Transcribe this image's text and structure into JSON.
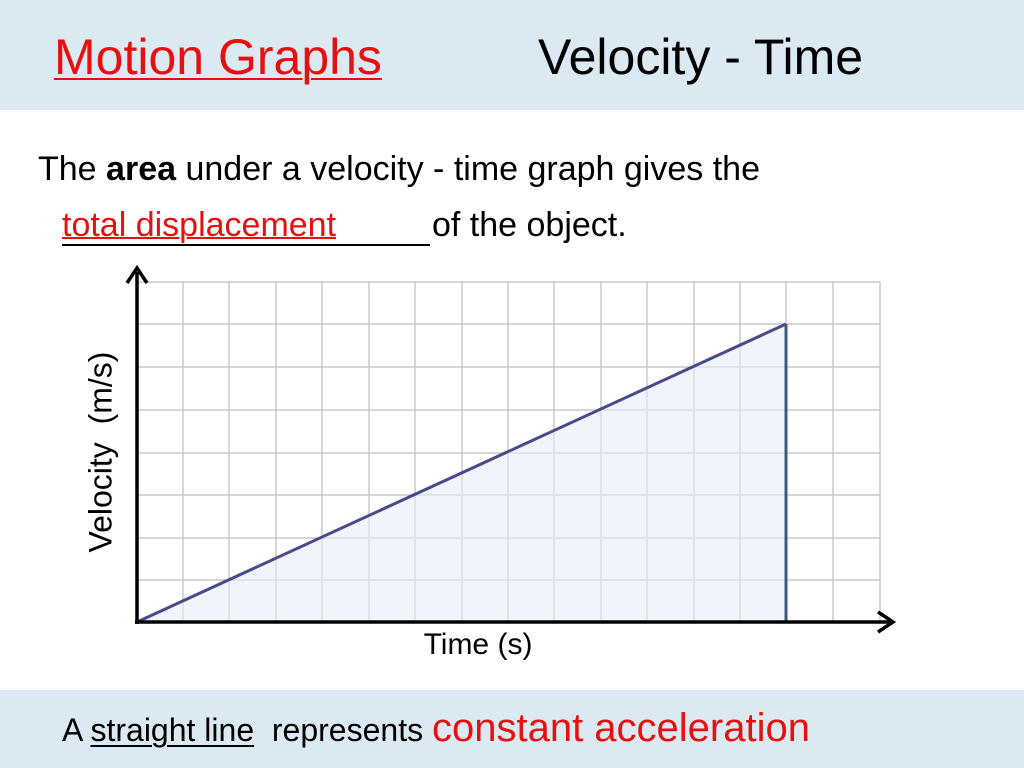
{
  "header": {
    "title": "Motion Graphs",
    "subtitle": "Velocity - Time"
  },
  "body": {
    "text_1": "The",
    "bold": "area",
    "text_2": "under a velocity - time graph gives the",
    "answer": "total displacement",
    "text_3": "of the object."
  },
  "graph": {
    "y_label": "Velocity  (m/s)",
    "x_label": "Time (s)"
  },
  "footer": {
    "text_1": "A",
    "underlined": "straight line",
    "text_2": "represents",
    "highlight": "constant acceleration"
  }
}
